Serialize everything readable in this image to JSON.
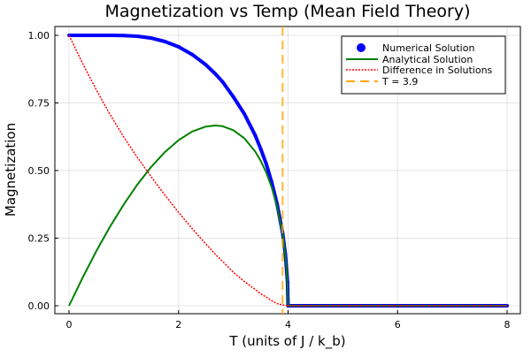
{
  "chart_data": {
    "type": "line",
    "title": "Magnetization vs Temp (Mean Field Theory)",
    "xlabel": "T (units of J / k_b)",
    "ylabel": "Magnetization",
    "xlim": [
      -0.25,
      8.25
    ],
    "ylim": [
      -0.03,
      1.03
    ],
    "xticks": [
      0,
      2,
      4,
      6,
      8
    ],
    "xtick_labels": [
      "0",
      "2",
      "4",
      "6",
      "8"
    ],
    "yticks": [
      0,
      0.25,
      0.5,
      0.75,
      1.0
    ],
    "ytick_labels": [
      "0.00",
      "0.25",
      "0.50",
      "0.75",
      "1.00"
    ],
    "grid": true,
    "legend_position": "top-right",
    "x": [
      0,
      0.25,
      0.5,
      0.75,
      1,
      1.25,
      1.5,
      1.75,
      2,
      2.25,
      2.5,
      2.67,
      2.8,
      3,
      3.2,
      3.4,
      3.5,
      3.6,
      3.7,
      3.8,
      3.9,
      3.95,
      3.99,
      4,
      8
    ],
    "series": [
      {
        "name": "Numerical Solution",
        "style": "markers",
        "color": "#0000ff",
        "values": [
          1,
          1,
          1,
          1,
          0.9993,
          0.9967,
          0.99,
          0.977,
          0.9575,
          0.929,
          0.891,
          0.858,
          0.829,
          0.773,
          0.71,
          0.63,
          0.58,
          0.525,
          0.458,
          0.376,
          0.27,
          0.192,
          0.087,
          0,
          0
        ]
      },
      {
        "name": "Analytical Solution",
        "style": "solid",
        "color": "#008000",
        "values": [
          0,
          0.1048,
          0.2025,
          0.2927,
          0.375,
          0.4488,
          0.5135,
          0.5683,
          0.6124,
          0.6444,
          0.6629,
          0.6667,
          0.6641,
          0.6495,
          0.6197,
          0.5702,
          0.5358,
          0.493,
          0.4388,
          0.3679,
          0.267,
          0.1912,
          0.0864,
          0,
          0
        ]
      },
      {
        "name": "Difference in Solutions",
        "style": "dotted",
        "color": "#ff0000",
        "values": [
          1,
          0.895,
          0.798,
          0.707,
          0.624,
          0.548,
          0.477,
          0.409,
          0.345,
          0.285,
          0.228,
          0.191,
          0.165,
          0.124,
          0.09,
          0.06,
          0.044,
          0.032,
          0.019,
          0.008,
          0.003,
          0.001,
          0.001,
          0,
          0
        ]
      }
    ],
    "vline": {
      "name": "T = 3.9",
      "x": 3.9,
      "style": "dashed",
      "color": "#ffa500"
    }
  }
}
